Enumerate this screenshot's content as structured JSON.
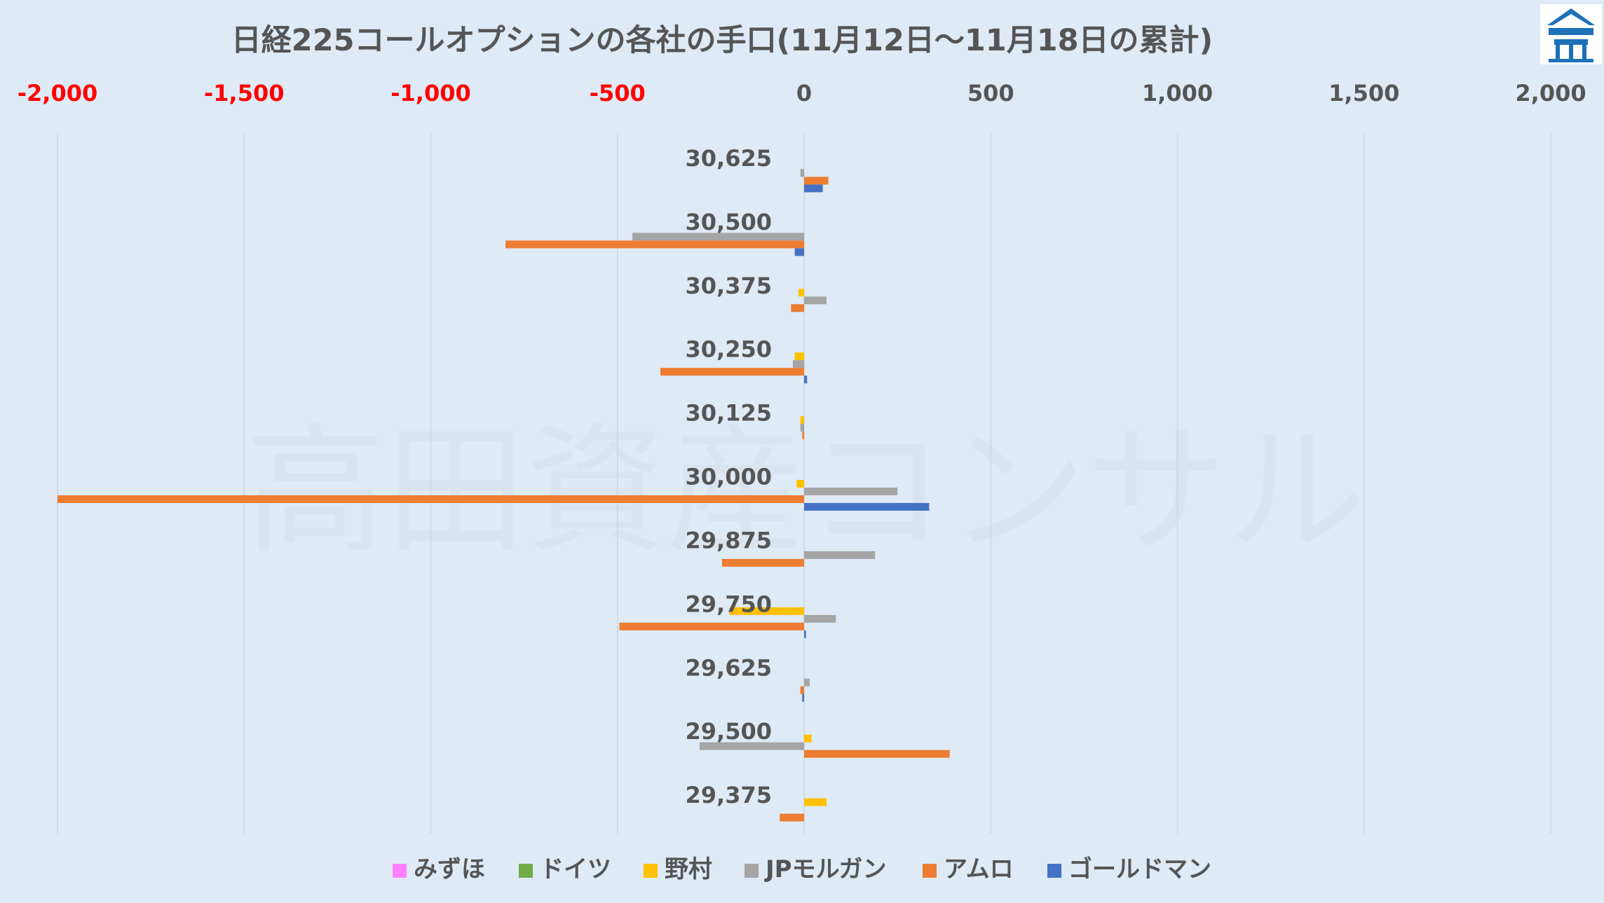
{
  "chart_data": {
    "type": "bar",
    "orientation": "horizontal",
    "title": "日経225コールオプションの各社の手口(11月12日～11月18日の累計)",
    "watermark": "高田資産コンサル",
    "xlim": [
      -2000,
      2000
    ],
    "x_ticks": [
      -2000,
      -1500,
      -1000,
      -500,
      0,
      500,
      1000,
      1500,
      2000
    ],
    "x_tick_labels": [
      "-2,000",
      "-1,500",
      "-1,000",
      "-500",
      "0",
      "500",
      "1,000",
      "1,500",
      "2,000"
    ],
    "negative_tick_color": "#ff0000",
    "positive_tick_color": "#555555",
    "categories": [
      "30,625",
      "30,500",
      "30,375",
      "30,250",
      "30,125",
      "30,000",
      "29,875",
      "29,750",
      "29,625",
      "29,500",
      "29,375"
    ],
    "series": [
      {
        "name": "みずほ",
        "color": "#ff80ff",
        "values": [
          0,
          0,
          0,
          0,
          0,
          0,
          0,
          0,
          0,
          0,
          0
        ]
      },
      {
        "name": "ドイツ",
        "color": "#70ad47",
        "values": [
          0,
          0,
          0,
          0,
          0,
          0,
          0,
          0,
          0,
          0,
          0
        ]
      },
      {
        "name": "野村",
        "color": "#ffc000",
        "values": [
          0,
          0,
          -15,
          -25,
          -10,
          -20,
          0,
          -200,
          0,
          20,
          60
        ]
      },
      {
        "name": "JPモルガン",
        "color": "#a5a5a5",
        "values": [
          -10,
          -460,
          60,
          -30,
          -10,
          250,
          190,
          85,
          15,
          -280,
          0
        ]
      },
      {
        "name": "アムロ",
        "color": "#ed7d31",
        "values": [
          65,
          -800,
          -35,
          -385,
          -5,
          -2000,
          -220,
          -495,
          -10,
          390,
          -65
        ]
      },
      {
        "name": "ゴールドマン",
        "color": "#4472c4",
        "values": [
          50,
          -25,
          0,
          8,
          0,
          335,
          0,
          5,
          -5,
          0,
          0
        ]
      }
    ]
  }
}
